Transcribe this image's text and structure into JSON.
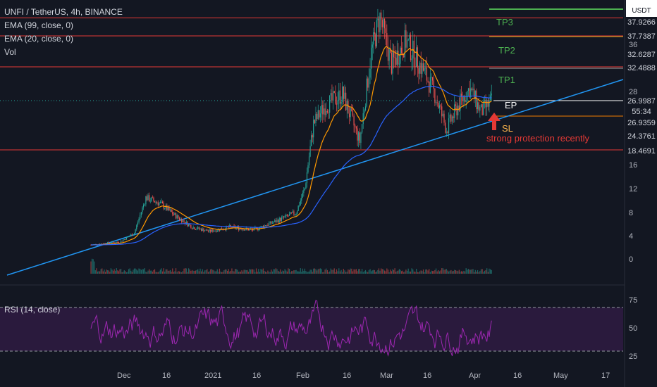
{
  "header": {
    "symbol_line": "UNFI / TetherUS, 4h, BINANCE",
    "ema99_label": "EMA (99, close, 0)",
    "ema20_label": "EMA (20, close, 0)",
    "vol_label": "Vol"
  },
  "rsi_panel": {
    "label": "RSI (14, close)",
    "levels": [
      "75",
      "50",
      "25"
    ]
  },
  "annotations": {
    "tp3": "TP3",
    "tp2": "TP2",
    "tp1": "TP1",
    "ep": "EP",
    "sl": "SL",
    "note": "strong protection recently"
  },
  "price_axis": {
    "currency": "USDT",
    "ticks": [
      "36",
      "28",
      "16",
      "12",
      "8",
      "4",
      "0"
    ]
  },
  "price_badges": [
    {
      "label": "4",
      "bg": "#ffffff",
      "fg": "#131722",
      "fraction": 0.0
    },
    {
      "label": "37.9266",
      "bg": "#e53935",
      "fg": "#ffffff"
    },
    {
      "label": "37.7387",
      "bg": "#2e7d32",
      "fg": "#ffffff"
    },
    {
      "label": "32.6287",
      "bg": "#e53935",
      "fg": "#ffffff"
    },
    {
      "label": "32.4888",
      "bg": "#2e7d32",
      "fg": "#ffffff"
    },
    {
      "label": "26.9987",
      "bg": "#ffffff",
      "fg": "#131722"
    },
    {
      "label": "55:34",
      "bg": "#ffffff",
      "fg": "#131722"
    },
    {
      "label": "26.9359",
      "bg": "#f8bbd0",
      "fg": "#131722"
    },
    {
      "label": "24.3761",
      "bg": "#f57c00",
      "fg": "#ffffff"
    },
    {
      "label": "18.4691",
      "bg": "#e53935",
      "fg": "#ffffff"
    }
  ],
  "time_axis": [
    "Dec",
    "16",
    "2021",
    "16",
    "Feb",
    "16",
    "Mar",
    "16",
    "Apr",
    "16",
    "May",
    "17"
  ],
  "colors": {
    "background": "#131722",
    "up": "#26a69a",
    "down": "#ef5350",
    "ema99": "#2962ff",
    "ema20": "#ff9800",
    "trendline": "#2196f3",
    "rsi_line": "#9c27b0",
    "rsi_band": "#2a1a3d",
    "resistance": "#e53935",
    "tp_line": "#4caf50"
  },
  "chart_data": {
    "type": "candlestick",
    "instrument": "UNFI / TetherUS",
    "timeframe": "4h",
    "exchange": "BINANCE",
    "levels": {
      "resistance_top": 37.9266,
      "tp3": 37.7387,
      "tp2_res": 32.6287,
      "tp2": 32.4888,
      "entry": 26.9987,
      "stop_zone": 26.9359,
      "stop_loss": 24.3761,
      "support": 18.4691
    },
    "approx_close_path": [
      {
        "x": "Nov 26",
        "y": 2.5
      },
      {
        "x": "Dec 1",
        "y": 3.0
      },
      {
        "x": "Dec 6",
        "y": 4.5
      },
      {
        "x": "Dec 10",
        "y": 10.5
      },
      {
        "x": "Dec 15",
        "y": 9.5
      },
      {
        "x": "Dec 20",
        "y": 7.5
      },
      {
        "x": "Dec 26",
        "y": 5.5
      },
      {
        "x": "Jan 1",
        "y": 4.8
      },
      {
        "x": "Jan 8",
        "y": 5.5
      },
      {
        "x": "Jan 16",
        "y": 5.0
      },
      {
        "x": "Jan 24",
        "y": 6.5
      },
      {
        "x": "Jan 31",
        "y": 8.0
      },
      {
        "x": "Feb 3",
        "y": 12.0
      },
      {
        "x": "Feb 6",
        "y": 23.0
      },
      {
        "x": "Feb 10",
        "y": 26.0
      },
      {
        "x": "Feb 16",
        "y": 28.0
      },
      {
        "x": "Feb 22",
        "y": 20.0
      },
      {
        "x": "Feb 26",
        "y": 35.0
      },
      {
        "x": "Mar 1",
        "y": 41.0
      },
      {
        "x": "Mar 5",
        "y": 33.0
      },
      {
        "x": "Mar 10",
        "y": 37.0
      },
      {
        "x": "Mar 16",
        "y": 32.0
      },
      {
        "x": "Mar 20",
        "y": 28.0
      },
      {
        "x": "Mar 24",
        "y": 22.0
      },
      {
        "x": "Mar 28",
        "y": 26.0
      },
      {
        "x": "Apr 1",
        "y": 29.0
      },
      {
        "x": "Apr 5",
        "y": 25.0
      },
      {
        "x": "Apr 9",
        "y": 27.0
      }
    ]
  }
}
